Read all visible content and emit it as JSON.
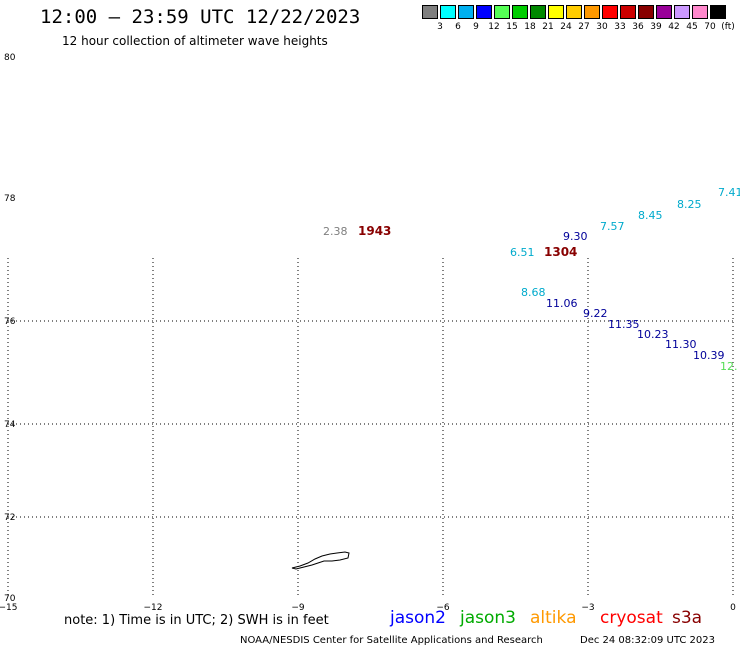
{
  "header": {
    "title": "12:00 – 23:59 UTC 12/22/2023",
    "subtitle": "12 hour collection of altimeter wave heights"
  },
  "legend": {
    "unit": "(ft)",
    "colors": [
      "#7f7f7f",
      "#00ffff",
      "#00b0f0",
      "#0000ff",
      "#55ff55",
      "#00cc00",
      "#008800",
      "#ffff00",
      "#ffcc00",
      "#ff9900",
      "#ff0000",
      "#cc0000",
      "#880000",
      "#990099",
      "#cc99ff",
      "#ff88cc",
      "#000000"
    ],
    "labels": [
      "3",
      "6",
      "9",
      "12",
      "15",
      "18",
      "21",
      "24",
      "27",
      "30",
      "33",
      "36",
      "39",
      "42",
      "45",
      "70"
    ]
  },
  "map": {
    "lat_labels": [
      "80",
      "78",
      "76",
      "74",
      "72",
      "70"
    ],
    "lon_labels": [
      "−15",
      "−12",
      "−9",
      "−6",
      "−3",
      "0"
    ],
    "readings": [
      {
        "text": "7.41",
        "color": "#00aacc"
      },
      {
        "text": "8.25",
        "color": "#00aacc"
      },
      {
        "text": "8.45",
        "color": "#00aacc"
      },
      {
        "text": "7.57",
        "color": "#00aacc"
      },
      {
        "text": "9.30",
        "color": "#000099"
      },
      {
        "text": "6.51",
        "color": "#00aacc"
      },
      {
        "text": "1304",
        "color": "#880000"
      },
      {
        "text": "2.38",
        "color": "#7f7f7f"
      },
      {
        "text": "1943",
        "color": "#880000"
      },
      {
        "text": "8.68",
        "color": "#00aacc"
      },
      {
        "text": "11.06",
        "color": "#000099"
      },
      {
        "text": "9.22",
        "color": "#000099"
      },
      {
        "text": "11.35",
        "color": "#000099"
      },
      {
        "text": "10.23",
        "color": "#000099"
      },
      {
        "text": "11.30",
        "color": "#000099"
      },
      {
        "text": "10.39",
        "color": "#000099"
      },
      {
        "text": "12.",
        "color": "#55dd55"
      }
    ]
  },
  "footer": {
    "note": "note: 1) Time is in UTC; 2) SWH is in feet",
    "satellites": [
      {
        "name": "jason2",
        "color": "#0000ff"
      },
      {
        "name": "jason3",
        "color": "#00aa00"
      },
      {
        "name": "altika",
        "color": "#ff9900"
      },
      {
        "name": "cryosat",
        "color": "#ff0000"
      },
      {
        "name": "s3a",
        "color": "#880000"
      }
    ],
    "credit_left": "NOAA/NESDIS Center for Satellite Applications and Research",
    "credit_right": "Dec 24 08:32:09 UTC 2023"
  }
}
